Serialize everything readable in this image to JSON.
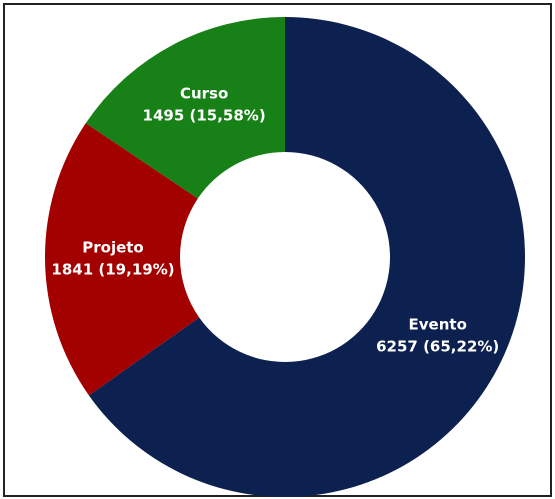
{
  "chart_data": {
    "type": "donut",
    "categories": [
      "Evento",
      "Projeto",
      "Curso"
    ],
    "values": [
      6257,
      1841,
      1495
    ],
    "value_labels": [
      "6257 (65,22%)",
      "1841 (19,19%)",
      "1495 (15,58%)"
    ],
    "colors": [
      "#0d2150",
      "#a30000",
      "#178017"
    ]
  }
}
